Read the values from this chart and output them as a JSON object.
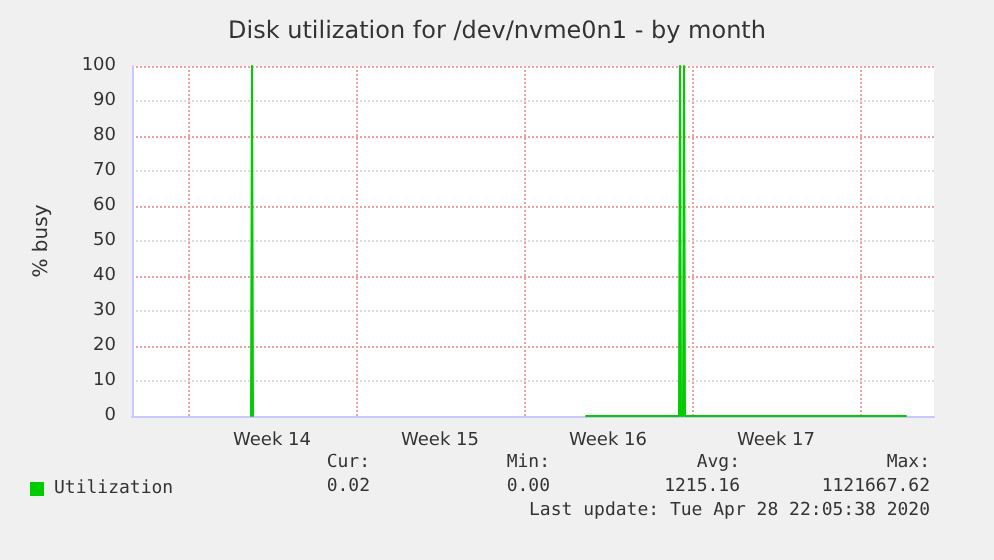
{
  "chart_data": {
    "type": "line",
    "title": "Disk utilization for /dev/nvme0n1 - by month",
    "ylabel": "% busy",
    "x": [
      "2020-04-01T15:00",
      "2020-04-01T16:00",
      "2020-04-01T17:00",
      "2020-04-01T18:00",
      "2020-04-15T14:00",
      "2020-04-19T11:00",
      "2020-04-19T12:00",
      "2020-04-19T13:00",
      "2020-04-19T14:00",
      "2020-04-19T15:00",
      "2020-04-19T16:00",
      "2020-04-19T17:00",
      "2020-04-28T22:00"
    ],
    "series": [
      {
        "name": "Utilization",
        "color": "#00cc00",
        "values": [
          0,
          100,
          0,
          null,
          0,
          0,
          100,
          0,
          0,
          0,
          100,
          0,
          0
        ]
      }
    ],
    "xlim": [
      "2020-03-27T16:00",
      "2020-04-30T02:00"
    ],
    "xticks": [
      {
        "value": "2020-03-30T00:00",
        "label": null
      },
      {
        "value": "2020-04-02T12:00",
        "label": "Week 14"
      },
      {
        "value": "2020-04-06T00:00",
        "label": null
      },
      {
        "value": "2020-04-09T12:00",
        "label": "Week 15"
      },
      {
        "value": "2020-04-13T00:00",
        "label": null
      },
      {
        "value": "2020-04-16T12:00",
        "label": "Week 16"
      },
      {
        "value": "2020-04-20T00:00",
        "label": null
      },
      {
        "value": "2020-04-23T12:00",
        "label": "Week 17"
      },
      {
        "value": "2020-04-27T00:00",
        "label": null
      }
    ],
    "ylim": [
      0,
      100
    ],
    "yticks": [
      0,
      10,
      20,
      30,
      40,
      50,
      60,
      70,
      80,
      90,
      100
    ],
    "grid": true,
    "legend": "bottom left",
    "marker": "none",
    "line_style": "solid",
    "annotations": [
      "Cur:",
      "Min:",
      "Avg:",
      "Max:",
      "0.02",
      "0.00",
      "1215.16",
      "1121667.62",
      "Last update: Tue Apr 28 22:05:38 2020"
    ]
  }
}
